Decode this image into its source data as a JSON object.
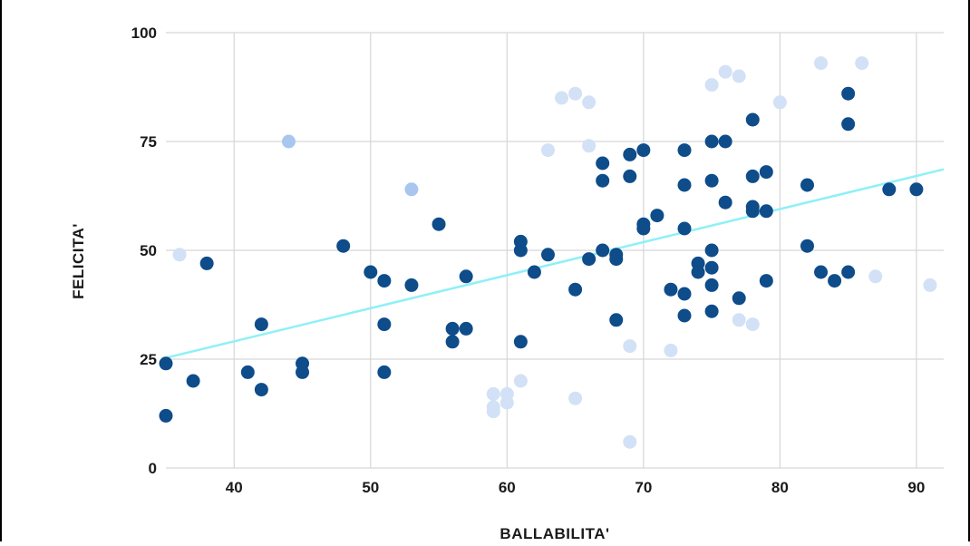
{
  "chart_data": {
    "type": "scatter",
    "title": "",
    "xlabel": "BALLABILITA'",
    "ylabel": "FELICITA'",
    "xlim": [
      35,
      92
    ],
    "ylim": [
      0,
      100
    ],
    "x_ticks": [
      40,
      50,
      60,
      70,
      80,
      90
    ],
    "y_ticks": [
      0,
      25,
      50,
      75,
      100
    ],
    "grid": true,
    "colors": {
      "dark_points": "#0e4c8a",
      "light_points": "#d2e1f6",
      "medium_points": "#a9c6ef",
      "trend_line": "#8ff0f7",
      "grid": "#d6d6d6"
    },
    "trend_line": {
      "x": [
        35,
        92
      ],
      "y": [
        25.3,
        68.6
      ]
    },
    "points_dark": [
      [
        35,
        24
      ],
      [
        35,
        12
      ],
      [
        37,
        20
      ],
      [
        38,
        47
      ],
      [
        41,
        22
      ],
      [
        42,
        18
      ],
      [
        42,
        33
      ],
      [
        45,
        24
      ],
      [
        45,
        22
      ],
      [
        48,
        51
      ],
      [
        50,
        45
      ],
      [
        51,
        43
      ],
      [
        51,
        33
      ],
      [
        51,
        22
      ],
      [
        53,
        42
      ],
      [
        55,
        56
      ],
      [
        56,
        32
      ],
      [
        56,
        29
      ],
      [
        57,
        32
      ],
      [
        57,
        44
      ],
      [
        61,
        52
      ],
      [
        61,
        50
      ],
      [
        61,
        29
      ],
      [
        62,
        45
      ],
      [
        63,
        49
      ],
      [
        65,
        41
      ],
      [
        66,
        48
      ],
      [
        67,
        50
      ],
      [
        67,
        70
      ],
      [
        67,
        66
      ],
      [
        68,
        49
      ],
      [
        68,
        48
      ],
      [
        68,
        34
      ],
      [
        69,
        72
      ],
      [
        69,
        67
      ],
      [
        70,
        73
      ],
      [
        70,
        56
      ],
      [
        70,
        55
      ],
      [
        71,
        58
      ],
      [
        72,
        41
      ],
      [
        73,
        73
      ],
      [
        73,
        65
      ],
      [
        73,
        55
      ],
      [
        73,
        40
      ],
      [
        73,
        35
      ],
      [
        74,
        47
      ],
      [
        74,
        45
      ],
      [
        75,
        75
      ],
      [
        75,
        66
      ],
      [
        75,
        50
      ],
      [
        75,
        46
      ],
      [
        75,
        42
      ],
      [
        75,
        36
      ],
      [
        76,
        75
      ],
      [
        76,
        61
      ],
      [
        77,
        39
      ],
      [
        78,
        80
      ],
      [
        78,
        67
      ],
      [
        78,
        60
      ],
      [
        78,
        59
      ],
      [
        79,
        68
      ],
      [
        79,
        59
      ],
      [
        79,
        43
      ],
      [
        82,
        65
      ],
      [
        82,
        51
      ],
      [
        83,
        45
      ],
      [
        84,
        43
      ],
      [
        85,
        86
      ],
      [
        85,
        79
      ],
      [
        85,
        45
      ],
      [
        88,
        64
      ],
      [
        90,
        64
      ]
    ],
    "points_light": [
      [
        36,
        49
      ],
      [
        59,
        17
      ],
      [
        59,
        14
      ],
      [
        59,
        13
      ],
      [
        60,
        17
      ],
      [
        60,
        15
      ],
      [
        61,
        20
      ],
      [
        63,
        73
      ],
      [
        64,
        85
      ],
      [
        65,
        86
      ],
      [
        65,
        16
      ],
      [
        66,
        84
      ],
      [
        66,
        74
      ],
      [
        69,
        28
      ],
      [
        69,
        6
      ],
      [
        72,
        27
      ],
      [
        75,
        88
      ],
      [
        76,
        91
      ],
      [
        77,
        90
      ],
      [
        77,
        34
      ],
      [
        78,
        33
      ],
      [
        80,
        84
      ],
      [
        83,
        93
      ],
      [
        86,
        93
      ],
      [
        87,
        44
      ],
      [
        91,
        42
      ]
    ],
    "points_medium": [
      [
        44,
        75
      ],
      [
        53,
        64
      ]
    ]
  }
}
